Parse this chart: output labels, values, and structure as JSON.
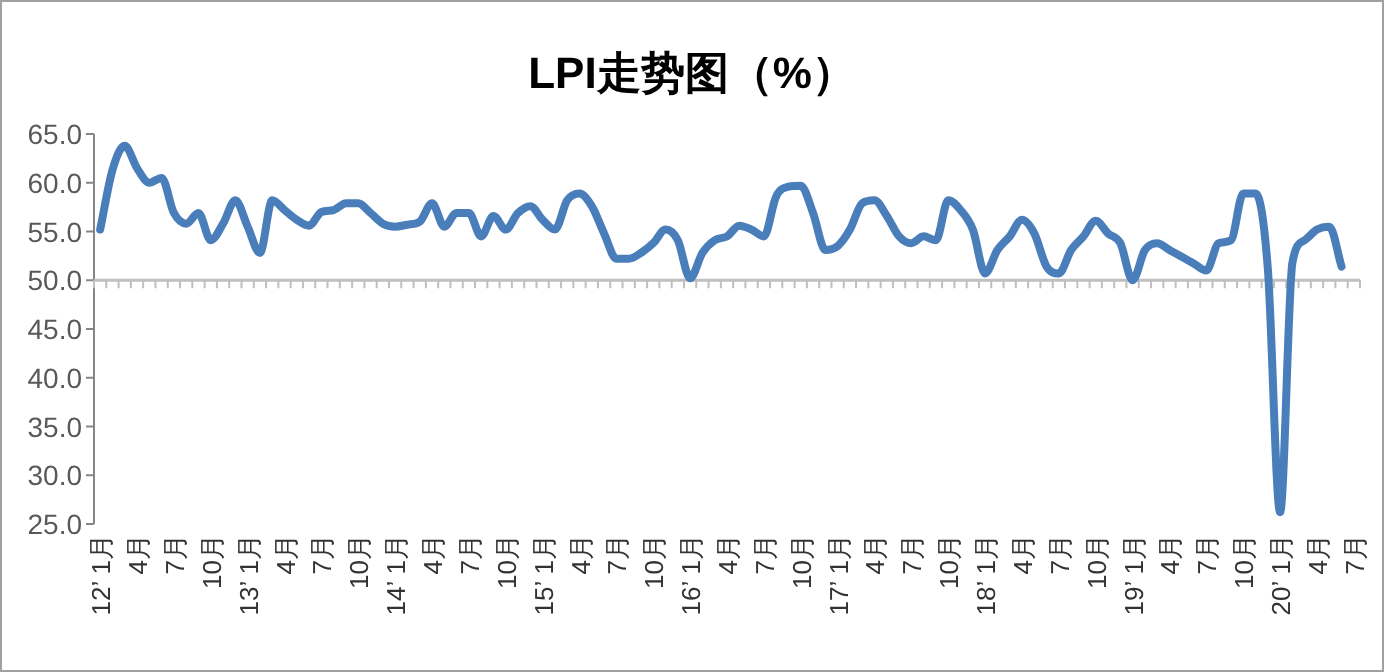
{
  "chart_data": {
    "type": "line",
    "title": "LPI走势图（%）",
    "categories": [
      "12’ 1月",
      null,
      null,
      "4月",
      null,
      null,
      "7月",
      null,
      null,
      "10月",
      null,
      null,
      "13’ 1月",
      null,
      null,
      "4月",
      null,
      null,
      "7月",
      null,
      null,
      "10月",
      null,
      null,
      "14’ 1月",
      null,
      null,
      "4月",
      null,
      null,
      "7月",
      null,
      null,
      "10月",
      null,
      null,
      "15’ 1月",
      null,
      null,
      "4月",
      null,
      null,
      "7月",
      null,
      null,
      "10月",
      null,
      null,
      "16’ 1月",
      null,
      null,
      "4月",
      null,
      null,
      "7月",
      null,
      null,
      "10月",
      null,
      null,
      "17’ 1月",
      null,
      null,
      "4月",
      null,
      null,
      "7月",
      null,
      null,
      "10月",
      null,
      null,
      "18’ 1月",
      null,
      null,
      "4月",
      null,
      null,
      "7月",
      null,
      null,
      "10月",
      null,
      null,
      "19’ 1月",
      null,
      null,
      "4月",
      null,
      null,
      "7月",
      null,
      null,
      "10月",
      null,
      null,
      "20’ 1月",
      null,
      null,
      "4月",
      null,
      null,
      "7月"
    ],
    "series": [
      {
        "color": "#4a7ebb",
        "values": [
          55.2,
          61.3,
          63.8,
          61.5,
          60.0,
          60.5,
          56.9,
          55.8,
          56.9,
          54.1,
          55.8,
          58.2,
          55.5,
          52.8,
          58.2,
          57.2,
          56.2,
          55.6,
          57.0,
          57.2,
          57.9,
          57.9,
          56.9,
          55.8,
          55.5,
          55.7,
          56.0,
          57.9,
          55.5,
          56.9,
          56.9,
          54.5,
          56.6,
          55.2,
          56.9,
          57.6,
          56.2,
          55.2,
          58.2,
          58.9,
          57.6,
          54.8,
          52.2,
          52.2,
          52.8,
          53.8,
          55.2,
          54.1,
          50.2,
          52.8,
          54.1,
          54.5,
          55.6,
          55.2,
          54.5,
          58.6,
          59.6,
          59.7,
          56.9,
          53.1,
          53.5,
          55.2,
          57.9,
          58.2,
          56.6,
          54.5,
          53.8,
          54.5,
          54.1,
          58.2,
          57.2,
          55.2,
          50.7,
          53.1,
          54.5,
          56.2,
          54.8,
          51.4,
          50.7,
          53.1,
          54.5,
          56.1,
          54.8,
          53.8,
          50.0,
          53.1,
          53.8,
          53.1,
          52.4,
          51.7,
          51.0,
          53.8,
          54.1,
          58.9,
          58.9,
          51.2,
          26.2,
          51.8,
          54.1,
          55.2,
          55.5,
          51.4,
          null
        ]
      }
    ],
    "ylim": [
      25,
      65
    ],
    "yticks": [
      {
        "value": 25,
        "label": "25.0"
      },
      {
        "value": 30,
        "label": "30.0"
      },
      {
        "value": 35,
        "label": "35.0"
      },
      {
        "value": 40,
        "label": "40.0"
      },
      {
        "value": 45,
        "label": "45.0"
      },
      {
        "value": 50,
        "label": "50.0"
      },
      {
        "value": 55,
        "label": "55.0"
      },
      {
        "value": 60,
        "label": "60.0"
      },
      {
        "value": 65,
        "label": "65.0"
      }
    ],
    "ref_lines": [
      {
        "axis": "y",
        "value": 50,
        "color": "#bfbfbf"
      }
    ],
    "grid": false,
    "marker": "none",
    "line_style": "solid"
  }
}
